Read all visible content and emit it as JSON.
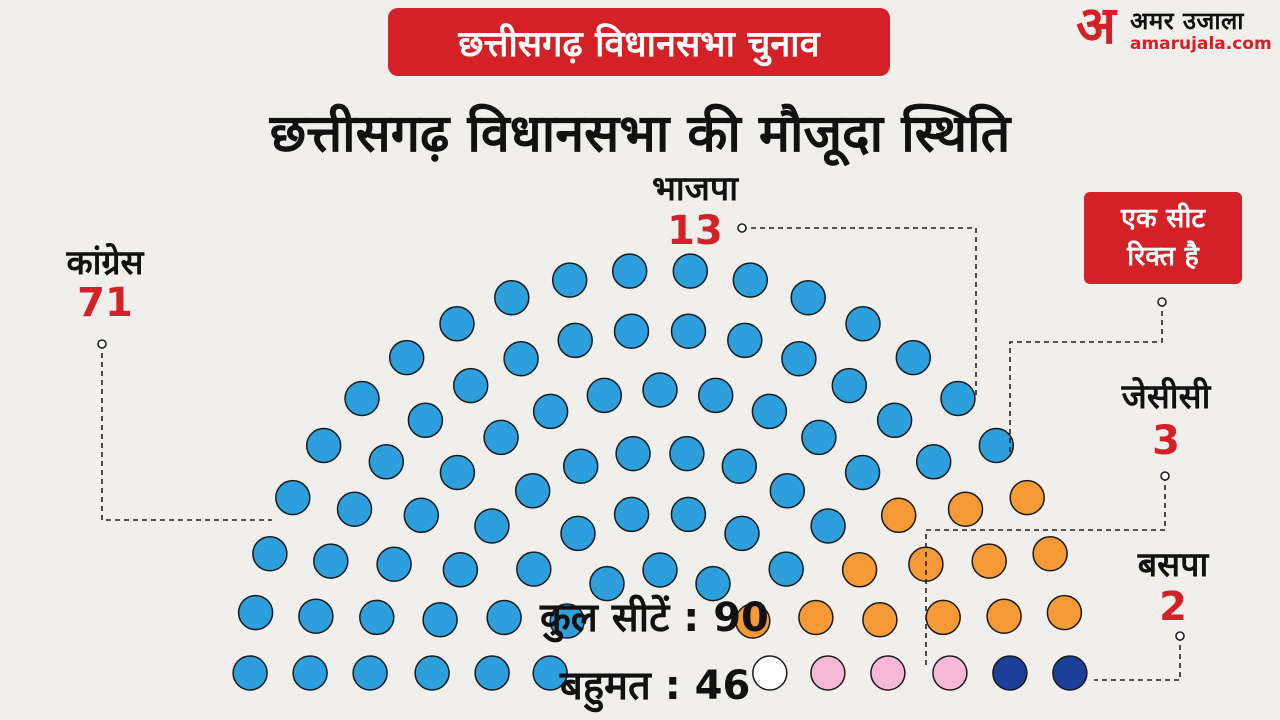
{
  "header": {
    "tag": "छत्तीसगढ़ विधानसभा चुनाव",
    "title": "छत्तीसगढ़ विधानसभा की मौजूदा स्थिति"
  },
  "logo": {
    "mark": "अ",
    "name_hindi": "अमर उजाला",
    "site": "amarujala.com"
  },
  "callout": {
    "vacant_line1": "एक सीट",
    "vacant_line2": "रिक्त है"
  },
  "stats": {
    "total_label": "कुल सीटें",
    "total_value": "90",
    "majority_label": "बहुमत",
    "majority_value": "46"
  },
  "chart_data": {
    "type": "parliament",
    "total_seats": 90,
    "majority": 46,
    "series": [
      {
        "name": "कांग्रेस",
        "value": 71,
        "color": "#2d9fdc"
      },
      {
        "name": "भाजपा",
        "value": 13,
        "color": "#f59a36"
      },
      {
        "name": "जेसीसी",
        "value": 3,
        "color": "#f6b8d4"
      },
      {
        "name": "बसपा",
        "value": 2,
        "color": "#1d3f9a"
      }
    ],
    "vacant": {
      "value": 1,
      "color": "#ffffff"
    }
  }
}
